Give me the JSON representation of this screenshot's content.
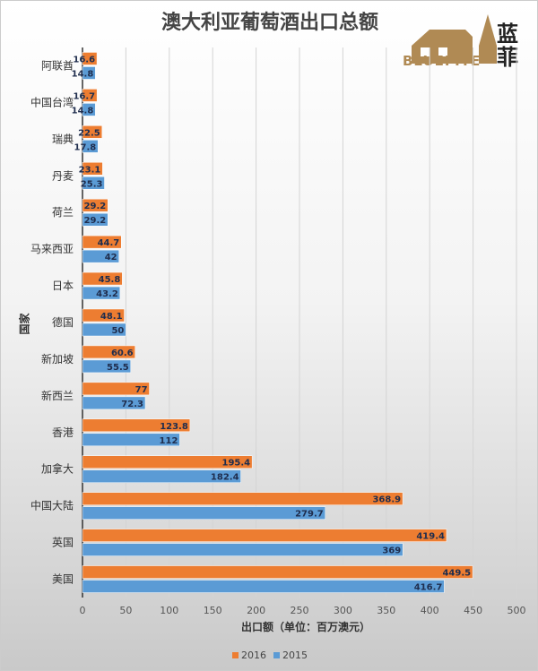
{
  "chart_data": {
    "type": "bar",
    "orientation": "horizontal",
    "title": "澳大利亚葡萄酒出口总额",
    "xlabel": "出口额（单位：百万澳元）",
    "ylabel": "国家",
    "categories": [
      "阿联酋",
      "中国台湾",
      "瑞典",
      "丹麦",
      "荷兰",
      "马来西亚",
      "日本",
      "德国",
      "新加坡",
      "新西兰",
      "香港",
      "加拿大",
      "中国大陆",
      "英国",
      "美国"
    ],
    "series": [
      {
        "name": "2016",
        "color": "#ed7d31",
        "values": [
          16.6,
          16.7,
          22.5,
          23.1,
          29.2,
          44.7,
          45.8,
          48.1,
          60.6,
          77,
          123.8,
          195.4,
          368.9,
          419.4,
          449.5
        ]
      },
      {
        "name": "2015",
        "color": "#5b9bd5",
        "values": [
          14.8,
          14.8,
          17.8,
          25.3,
          29.2,
          42,
          43.2,
          50,
          55.5,
          72.3,
          112,
          182.4,
          279.7,
          369,
          416.7
        ]
      }
    ],
    "xlim": [
      0,
      500
    ],
    "xticks": [
      0,
      50,
      100,
      150,
      200,
      250,
      300,
      350,
      400,
      450,
      500
    ],
    "grid": true,
    "legend": "bottom"
  },
  "logo": {
    "brand_en": "BLUEFITE",
    "brand_cn": "蓝菲"
  }
}
